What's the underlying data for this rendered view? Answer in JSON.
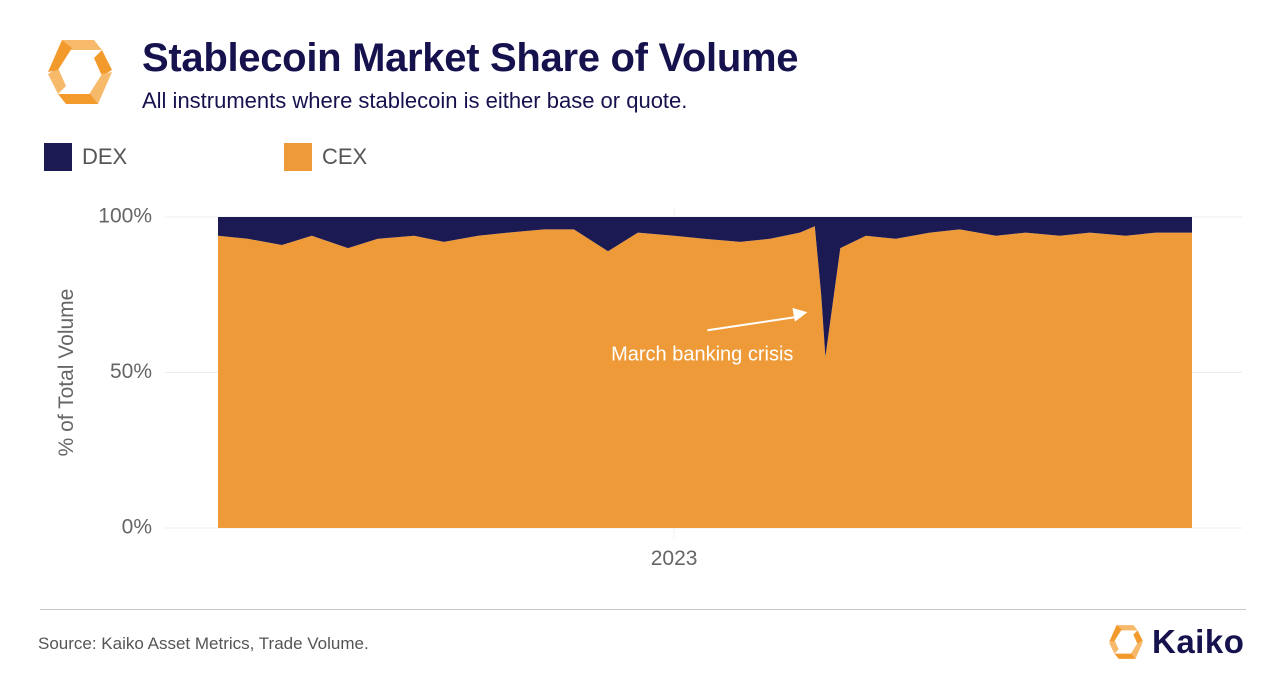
{
  "header": {
    "title": "Stablecoin Market Share of Volume",
    "subtitle": "All instruments where stablecoin is either base or quote."
  },
  "footer": {
    "source": "Source: Kaiko Asset Metrics, Trade Volume.",
    "brand": "Kaiko"
  },
  "colors": {
    "dex": "#1c1a52",
    "cex": "#ef9a38",
    "title": "#16124e",
    "logo_orange": "#f39a2c",
    "logo_light": "#f7b96a"
  },
  "icons": {
    "logo": "kaiko-logo-icon"
  },
  "chart_data": {
    "type": "area",
    "stacked": true,
    "normalized": true,
    "title": "Stablecoin Market Share of Volume",
    "subtitle": "All instruments where stablecoin is either base or quote.",
    "xlabel": "",
    "ylabel": "% of Total Volume",
    "ylim": [
      0,
      100
    ],
    "yticks": [
      "0%",
      "50%",
      "100%"
    ],
    "xticks": [
      "2023"
    ],
    "xtick_dates": [
      "2023-01-01"
    ],
    "legend": [
      "DEX",
      "CEX"
    ],
    "legend_position": "top-left",
    "grid": true,
    "x": [
      "2022-06-01",
      "2022-06-15",
      "2022-07-01",
      "2022-07-15",
      "2022-08-01",
      "2022-08-15",
      "2022-09-01",
      "2022-09-15",
      "2022-10-01",
      "2022-10-15",
      "2022-11-01",
      "2022-11-10",
      "2022-11-15",
      "2022-12-01",
      "2022-12-15",
      "2023-01-01",
      "2023-01-15",
      "2023-02-01",
      "2023-02-15",
      "2023-03-01",
      "2023-03-08",
      "2023-03-11",
      "2023-03-13",
      "2023-03-20",
      "2023-04-01",
      "2023-04-15",
      "2023-05-01",
      "2023-05-15",
      "2023-06-01",
      "2023-06-15",
      "2023-07-01",
      "2023-07-15",
      "2023-08-01",
      "2023-08-15",
      "2023-09-01"
    ],
    "series": [
      {
        "name": "DEX",
        "values": [
          6,
          7,
          9,
          6,
          10,
          7,
          6,
          8,
          6,
          5,
          4,
          4,
          4,
          11,
          5,
          6,
          7,
          8,
          7,
          5,
          3,
          25,
          45,
          10,
          6,
          7,
          5,
          4,
          6,
          5,
          6,
          5,
          6,
          5,
          5
        ]
      },
      {
        "name": "CEX",
        "values": [
          94,
          93,
          91,
          94,
          90,
          93,
          94,
          92,
          94,
          95,
          96,
          96,
          96,
          89,
          95,
          94,
          93,
          92,
          93,
          95,
          97,
          75,
          55,
          90,
          94,
          93,
          95,
          96,
          94,
          95,
          94,
          95,
          94,
          95,
          95
        ]
      }
    ],
    "annotations": [
      {
        "text": "March banking crisis",
        "x": "2023-03-13",
        "y": 70
      }
    ]
  }
}
